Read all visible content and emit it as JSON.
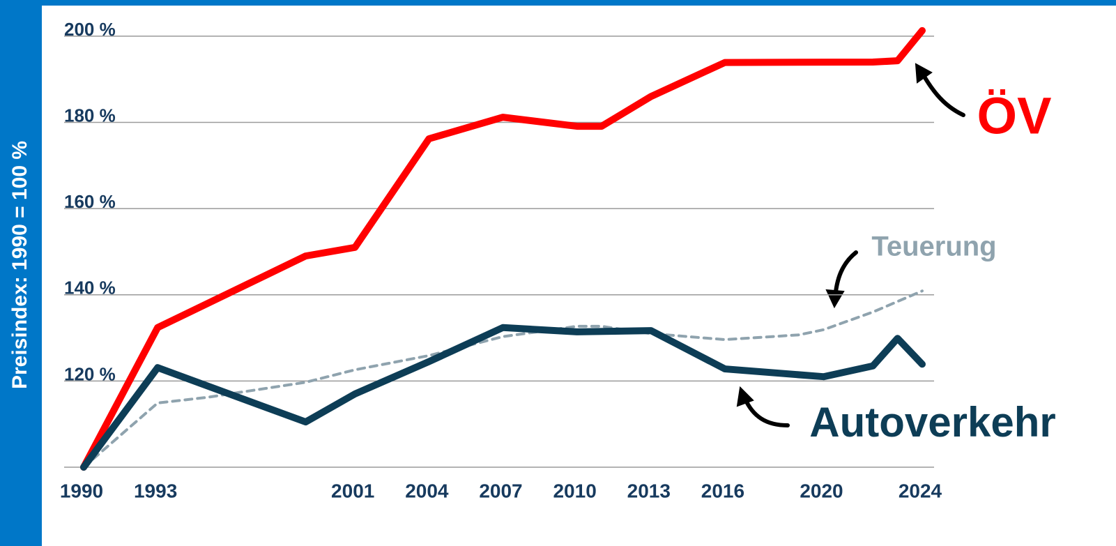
{
  "chart_data": {
    "type": "line",
    "y_label": "Preisindex: 1990 = 100 %",
    "xlim": [
      1990,
      2024
    ],
    "xticks": [
      1990,
      1993,
      2001,
      2004,
      2007,
      2010,
      2013,
      2016,
      2020,
      2024
    ],
    "ylim": [
      100,
      205
    ],
    "yticks": [
      {
        "value": 120,
        "label": "120 %"
      },
      {
        "value": 140,
        "label": "140 %"
      },
      {
        "value": 160,
        "label": "160 %"
      },
      {
        "value": 180,
        "label": "180 %"
      },
      {
        "value": 200,
        "label": "200 %"
      }
    ],
    "grid": true,
    "series": [
      {
        "name": "ÖV",
        "color": "#ff0000",
        "style": "solid",
        "x": [
          1990,
          1993,
          1999,
          2001,
          2004,
          2007,
          2010,
          2011,
          2013,
          2016,
          2022,
          2023,
          2024
        ],
        "values": [
          100,
          132.4,
          149,
          151,
          176.2,
          181.2,
          179.1,
          179.1,
          186,
          193.9,
          194,
          194.3,
          201.3
        ]
      },
      {
        "name": "Teuerung",
        "color": "#8fa3ae",
        "style": "dotted",
        "x": [
          1990,
          1993,
          1995,
          1999,
          2001,
          2004,
          2007,
          2010,
          2011,
          2013,
          2016,
          2019,
          2020,
          2022,
          2024
        ],
        "values": [
          100,
          114.9,
          116.2,
          119.7,
          122.6,
          125.9,
          130.3,
          132.7,
          132.7,
          131,
          129.6,
          130.7,
          131.9,
          136,
          140.9
        ]
      },
      {
        "name": "Autoverkehr",
        "color": "#0d3d56",
        "style": "solid",
        "x": [
          1990,
          1993,
          1999,
          2001,
          2004,
          2007,
          2010,
          2013,
          2016,
          2020,
          2022,
          2023,
          2024
        ],
        "values": [
          100,
          123.1,
          110.5,
          117,
          124.5,
          132.4,
          131.4,
          131.7,
          122.8,
          121,
          123.5,
          129.9,
          123.9
        ]
      }
    ]
  }
}
